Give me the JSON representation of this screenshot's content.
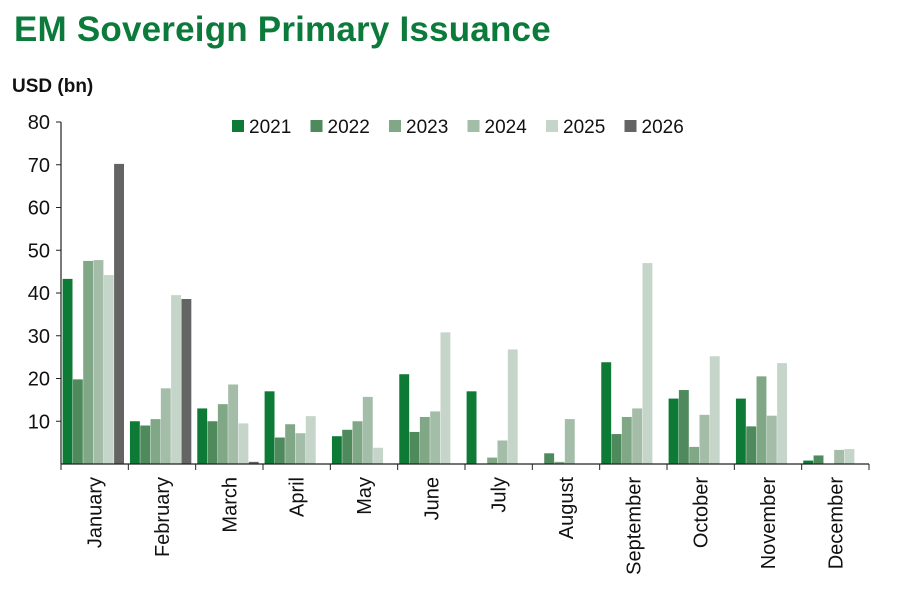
{
  "page": {
    "title": "EM Sovereign Primary Issuance",
    "unit_label": "USD (bn)"
  },
  "chart_data": {
    "type": "bar",
    "title": "EM Sovereign Primary Issuance",
    "ylabel": "USD (bn)",
    "xlabel": "",
    "ylim": [
      0,
      80
    ],
    "yticks": [
      10,
      20,
      30,
      40,
      50,
      60,
      70,
      80
    ],
    "grid": false,
    "legend_position": "top-center",
    "categories": [
      "January",
      "February",
      "March",
      "April",
      "May",
      "June",
      "July",
      "August",
      "September",
      "October",
      "November",
      "December"
    ],
    "series": [
      {
        "name": "2021",
        "color": "#0d7a36",
        "values": [
          43.3,
          10.0,
          13.0,
          17.0,
          6.5,
          21.0,
          17.0,
          0,
          23.8,
          15.3,
          15.3,
          0.8
        ]
      },
      {
        "name": "2022",
        "color": "#4e8a5c",
        "values": [
          19.8,
          9.0,
          10.0,
          6.2,
          8.0,
          7.5,
          0,
          2.5,
          7.0,
          17.3,
          8.8,
          2.0
        ]
      },
      {
        "name": "2023",
        "color": "#80a887",
        "values": [
          47.5,
          10.5,
          14.0,
          9.3,
          10.0,
          11.0,
          1.5,
          0.5,
          11.0,
          4.0,
          20.5,
          0
        ]
      },
      {
        "name": "2024",
        "color": "#a4bda8",
        "values": [
          47.7,
          17.7,
          18.6,
          7.2,
          15.7,
          12.3,
          5.5,
          10.5,
          13.0,
          11.5,
          11.3,
          3.3
        ]
      },
      {
        "name": "2025",
        "color": "#c6d5c9",
        "values": [
          44.2,
          39.5,
          9.5,
          11.2,
          3.8,
          30.8,
          26.8,
          0,
          47.0,
          25.2,
          23.6,
          3.5
        ]
      },
      {
        "name": "2026",
        "color": "#646464",
        "values": [
          70.2,
          38.6,
          0.5,
          0,
          0,
          0,
          0,
          0,
          0,
          0,
          0,
          0
        ]
      }
    ]
  }
}
